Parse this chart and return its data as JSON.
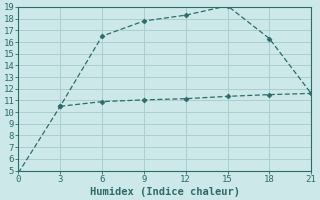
{
  "xlabel": "Humidex (Indice chaleur)",
  "background_color": "#cce8e8",
  "line1_x": [
    0,
    3,
    6,
    9,
    12,
    15,
    18,
    21
  ],
  "line1_y": [
    4.8,
    10.5,
    16.5,
    17.8,
    18.3,
    19.1,
    16.3,
    11.6
  ],
  "line2_x": [
    3,
    6,
    9,
    12,
    15,
    18,
    21
  ],
  "line2_y": [
    10.5,
    10.9,
    11.05,
    11.15,
    11.35,
    11.5,
    11.6
  ],
  "line_color": "#2d6b6b",
  "marker": "D",
  "marker_size": 2.5,
  "xlim": [
    0,
    21
  ],
  "ylim": [
    5,
    19
  ],
  "xticks": [
    0,
    3,
    6,
    9,
    12,
    15,
    18,
    21
  ],
  "yticks": [
    5,
    6,
    7,
    8,
    9,
    10,
    11,
    12,
    13,
    14,
    15,
    16,
    17,
    18,
    19
  ],
  "grid_color": "#aacece",
  "tick_fontsize": 6.5,
  "xlabel_fontsize": 7.5
}
